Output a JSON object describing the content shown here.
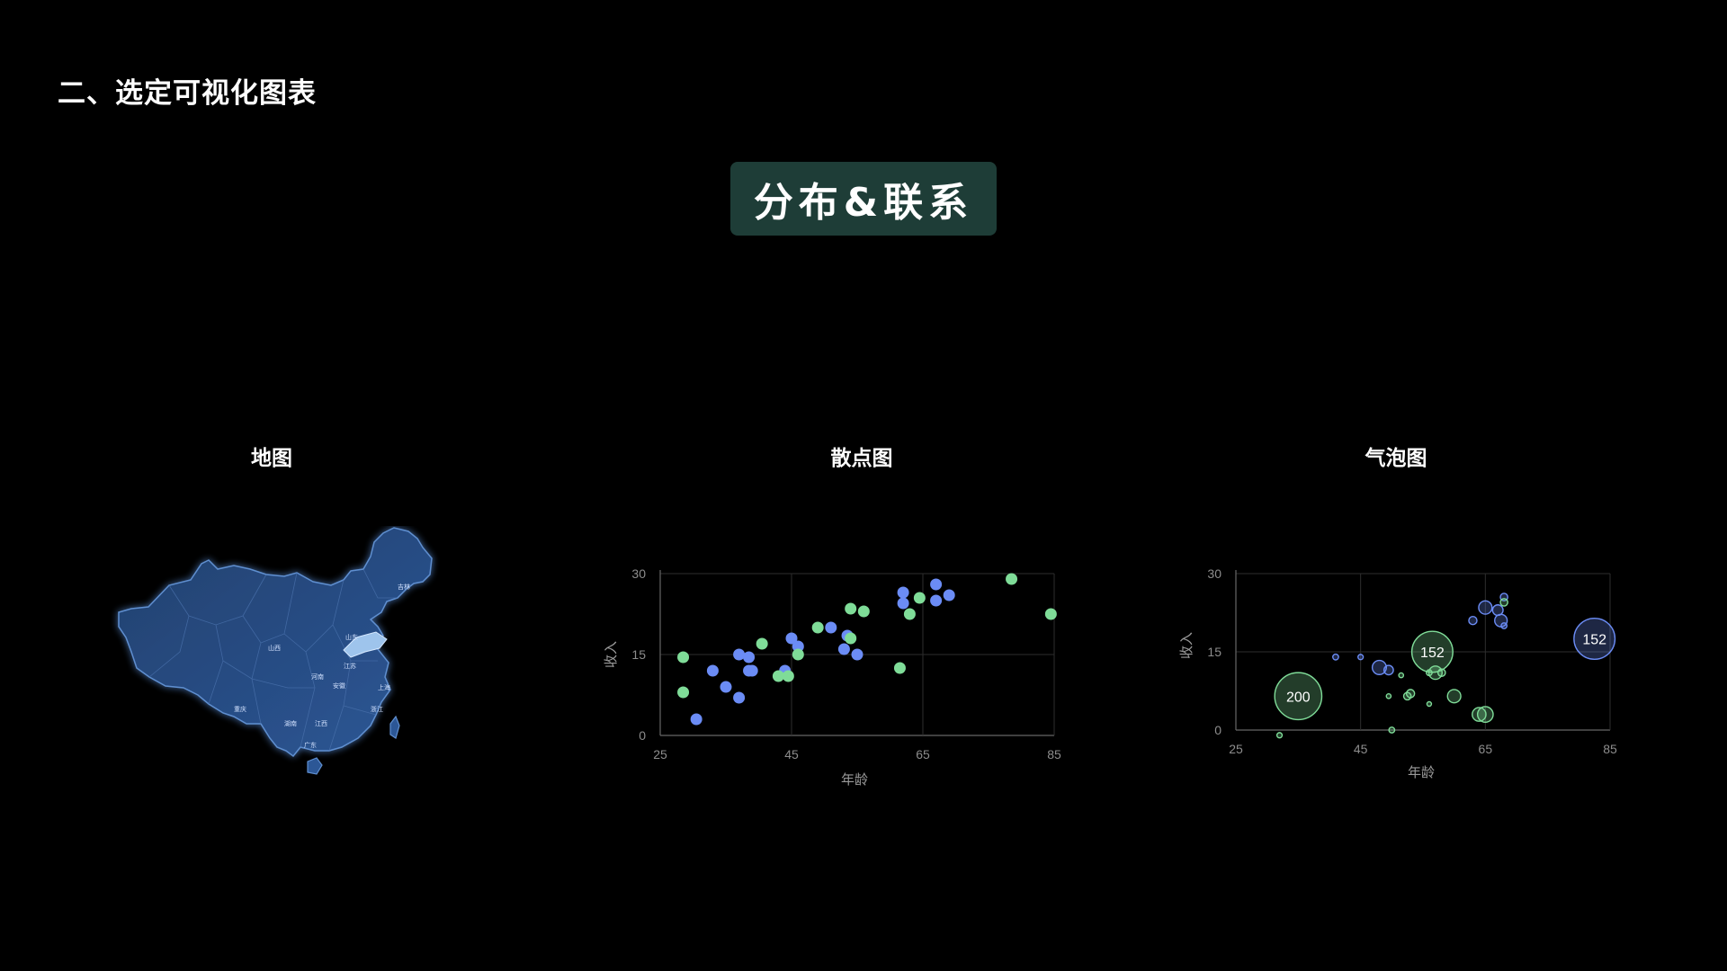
{
  "page": {
    "title": "二、选定可视化图表",
    "badge": "分布&联系"
  },
  "panels": {
    "map_title": "地图",
    "scatter_title": "散点图",
    "bubble_title": "气泡图"
  },
  "map": {
    "province_labels": [
      "吉林",
      "山东",
      "山西",
      "河南",
      "江苏",
      "安徽",
      "上海",
      "浙江",
      "重庆",
      "湖南",
      "江西",
      "广东"
    ],
    "fill": "#1f3a66",
    "highlight": "#9ec4ec"
  },
  "colors": {
    "background": "#000000",
    "badge_bg": "#1e3d37",
    "blue_series": "#6b8cf5",
    "green_series": "#7fdc98"
  },
  "chart_data": [
    {
      "type": "scatter",
      "xlabel": "年龄",
      "ylabel": "收入",
      "xlim": [
        25,
        85
      ],
      "ylim": [
        0,
        30
      ],
      "xticks": [
        25,
        45,
        65,
        85
      ],
      "yticks": [
        0,
        15,
        30
      ],
      "grid": true,
      "series": [
        {
          "color": "#6b8cf5",
          "points": [
            [
              30.5,
              3
            ],
            [
              33,
              12
            ],
            [
              35,
              9
            ],
            [
              37,
              7
            ],
            [
              37,
              15
            ],
            [
              38.5,
              14.5
            ],
            [
              38.5,
              12
            ],
            [
              39,
              12
            ],
            [
              44,
              12
            ],
            [
              45,
              18
            ],
            [
              46,
              16.5
            ],
            [
              51,
              20
            ],
            [
              53,
              16
            ],
            [
              53.5,
              18.5
            ],
            [
              55,
              15
            ],
            [
              62,
              26.5
            ],
            [
              62,
              24.5
            ],
            [
              67,
              28
            ],
            [
              67,
              25
            ],
            [
              69,
              26
            ]
          ]
        },
        {
          "color": "#7fdc98",
          "points": [
            [
              28.5,
              14.5
            ],
            [
              28.5,
              8
            ],
            [
              40.5,
              17
            ],
            [
              43,
              11
            ],
            [
              44.5,
              11
            ],
            [
              46,
              15
            ],
            [
              49,
              20
            ],
            [
              54,
              23.5
            ],
            [
              54,
              18
            ],
            [
              56,
              23
            ],
            [
              61.5,
              12.5
            ],
            [
              63,
              22.5
            ],
            [
              64.5,
              25.5
            ],
            [
              78.5,
              29
            ],
            [
              84.5,
              22.5
            ]
          ]
        }
      ]
    },
    {
      "type": "bubble",
      "xlabel": "年龄",
      "ylabel": "收入",
      "xlim": [
        25,
        85
      ],
      "ylim": [
        0,
        30
      ],
      "xticks": [
        25,
        45,
        65,
        85
      ],
      "yticks": [
        0,
        15,
        30
      ],
      "grid": true,
      "data_labels": [
        "200",
        "152",
        "152"
      ],
      "series": [
        {
          "color": "#6b8cf5",
          "bubbles": [
            [
              41,
              14,
              3
            ],
            [
              45,
              14,
              2.5
            ],
            [
              48,
              12,
              18
            ],
            [
              49.5,
              11.5,
              8
            ],
            [
              63,
              21,
              6
            ],
            [
              65,
              23.5,
              16
            ],
            [
              67,
              23,
              10
            ],
            [
              67.5,
              21,
              14
            ],
            [
              68,
              20,
              3
            ],
            [
              68,
              25.5,
              5
            ],
            [
              82.5,
              17.5,
              152
            ]
          ]
        },
        {
          "color": "#7fdc98",
          "bubbles": [
            [
              32,
              -1,
              2.5
            ],
            [
              49.5,
              6.5,
              2
            ],
            [
              50,
              0,
              3
            ],
            [
              51.5,
              10.5,
              2
            ],
            [
              52.5,
              6.5,
              5
            ],
            [
              53,
              7,
              6
            ],
            [
              56,
              11,
              3
            ],
            [
              56,
              5,
              1.5
            ],
            [
              56.5,
              15,
              152
            ],
            [
              57,
              11,
              16
            ],
            [
              58,
              11,
              5
            ],
            [
              60,
              6.5,
              16
            ],
            [
              64,
              3,
              17
            ],
            [
              65,
              3,
              22
            ],
            [
              68,
              24.5,
              5
            ],
            [
              35,
              6.5,
              200
            ]
          ]
        }
      ]
    }
  ]
}
